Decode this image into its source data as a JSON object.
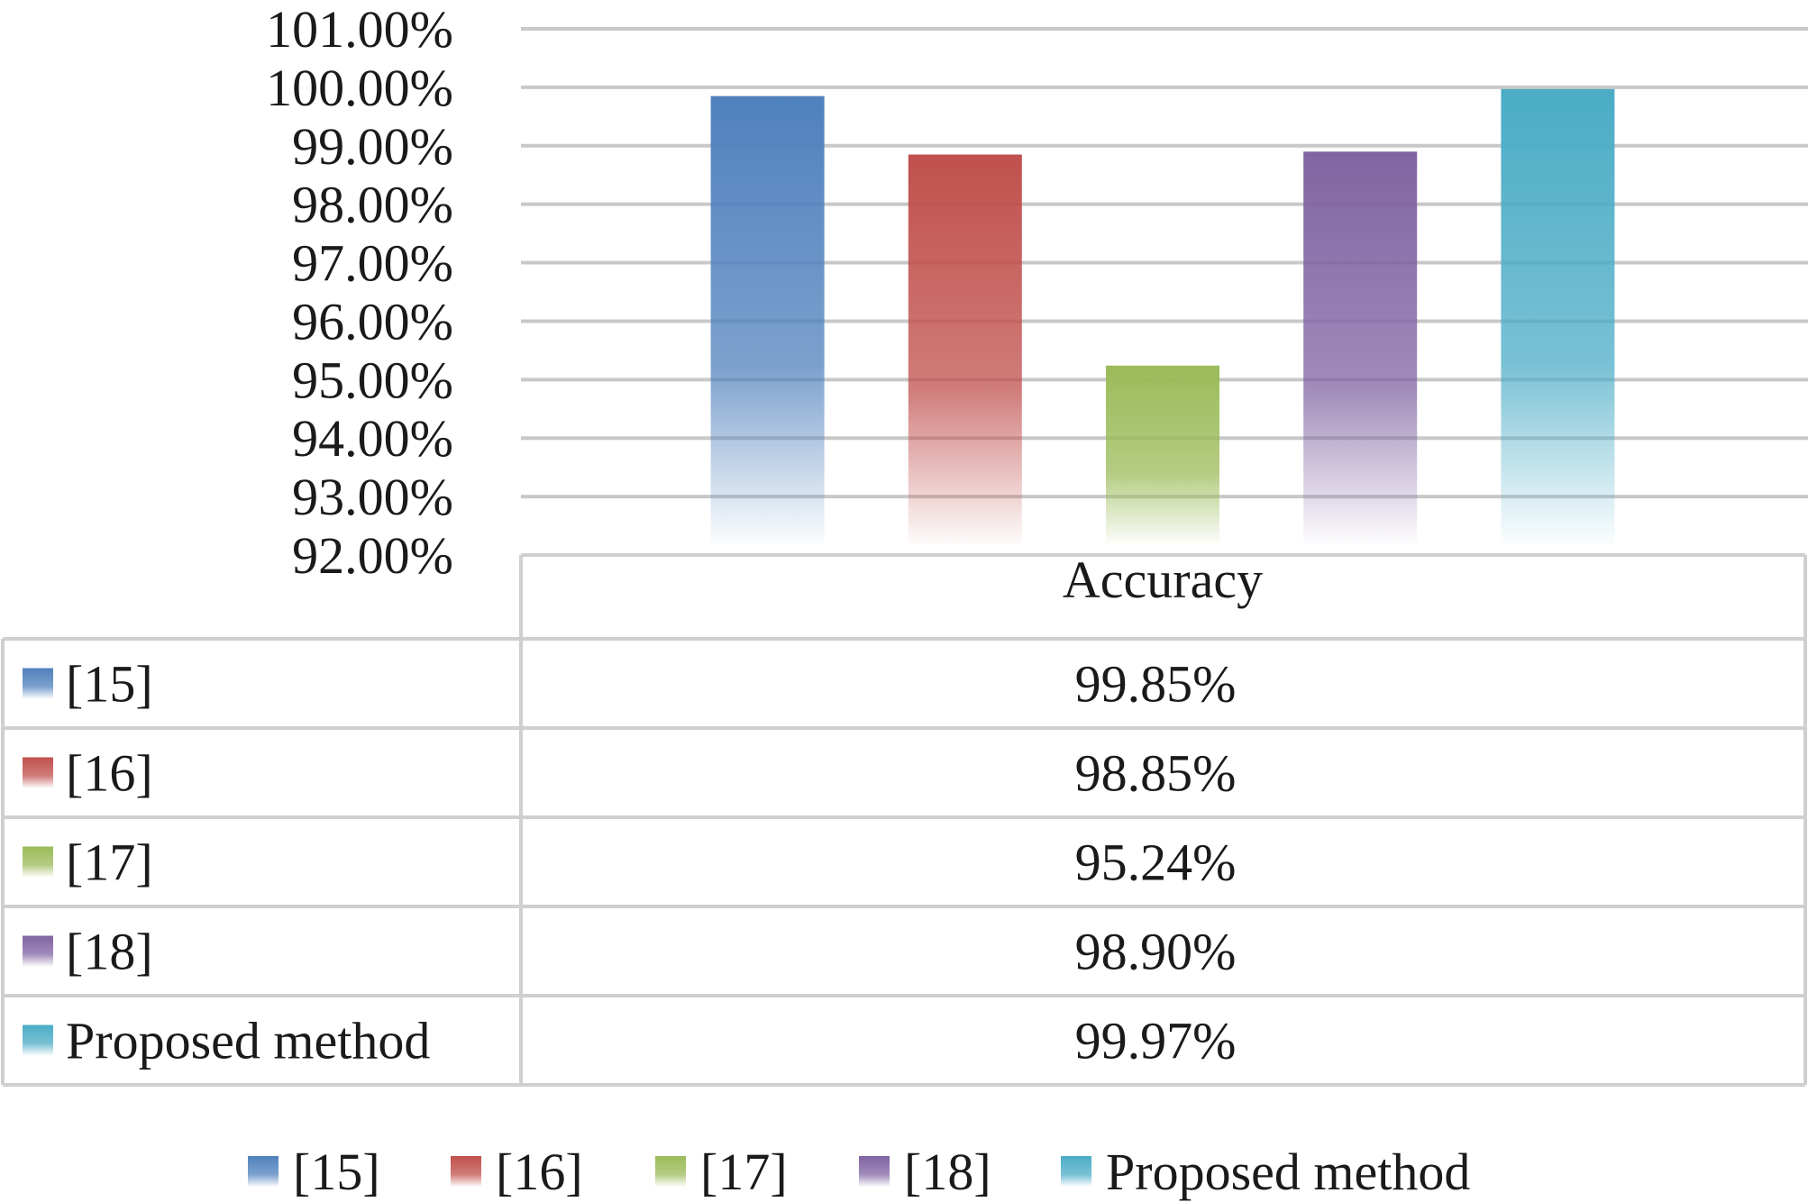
{
  "chart_data": {
    "type": "bar",
    "title": "",
    "xlabel": "",
    "ylabel": "",
    "category": "Accuracy",
    "ylim": [
      0.92,
      1.01
    ],
    "ytick_step": 0.01,
    "y_tick_labels": [
      "101.00%",
      "100.00%",
      "99.00%",
      "98.00%",
      "97.00%",
      "96.00%",
      "95.00%",
      "94.00%",
      "93.00%",
      "92.00%"
    ],
    "grid": true,
    "legend_position": "bottom",
    "data_table": true,
    "series": [
      {
        "name": "[15]",
        "value": 0.9985,
        "label": "99.85%",
        "color": "#4f81bd"
      },
      {
        "name": "[16]",
        "value": 0.9885,
        "label": "98.85%",
        "color": "#c0504d"
      },
      {
        "name": "[17]",
        "value": 0.9524,
        "label": "95.24%",
        "color": "#9bbb59"
      },
      {
        "name": "[18]",
        "value": 0.989,
        "label": "98.90%",
        "color": "#8064a2"
      },
      {
        "name": "Proposed method",
        "value": 0.9997,
        "label": "99.97%",
        "color": "#4bacc6"
      }
    ]
  }
}
